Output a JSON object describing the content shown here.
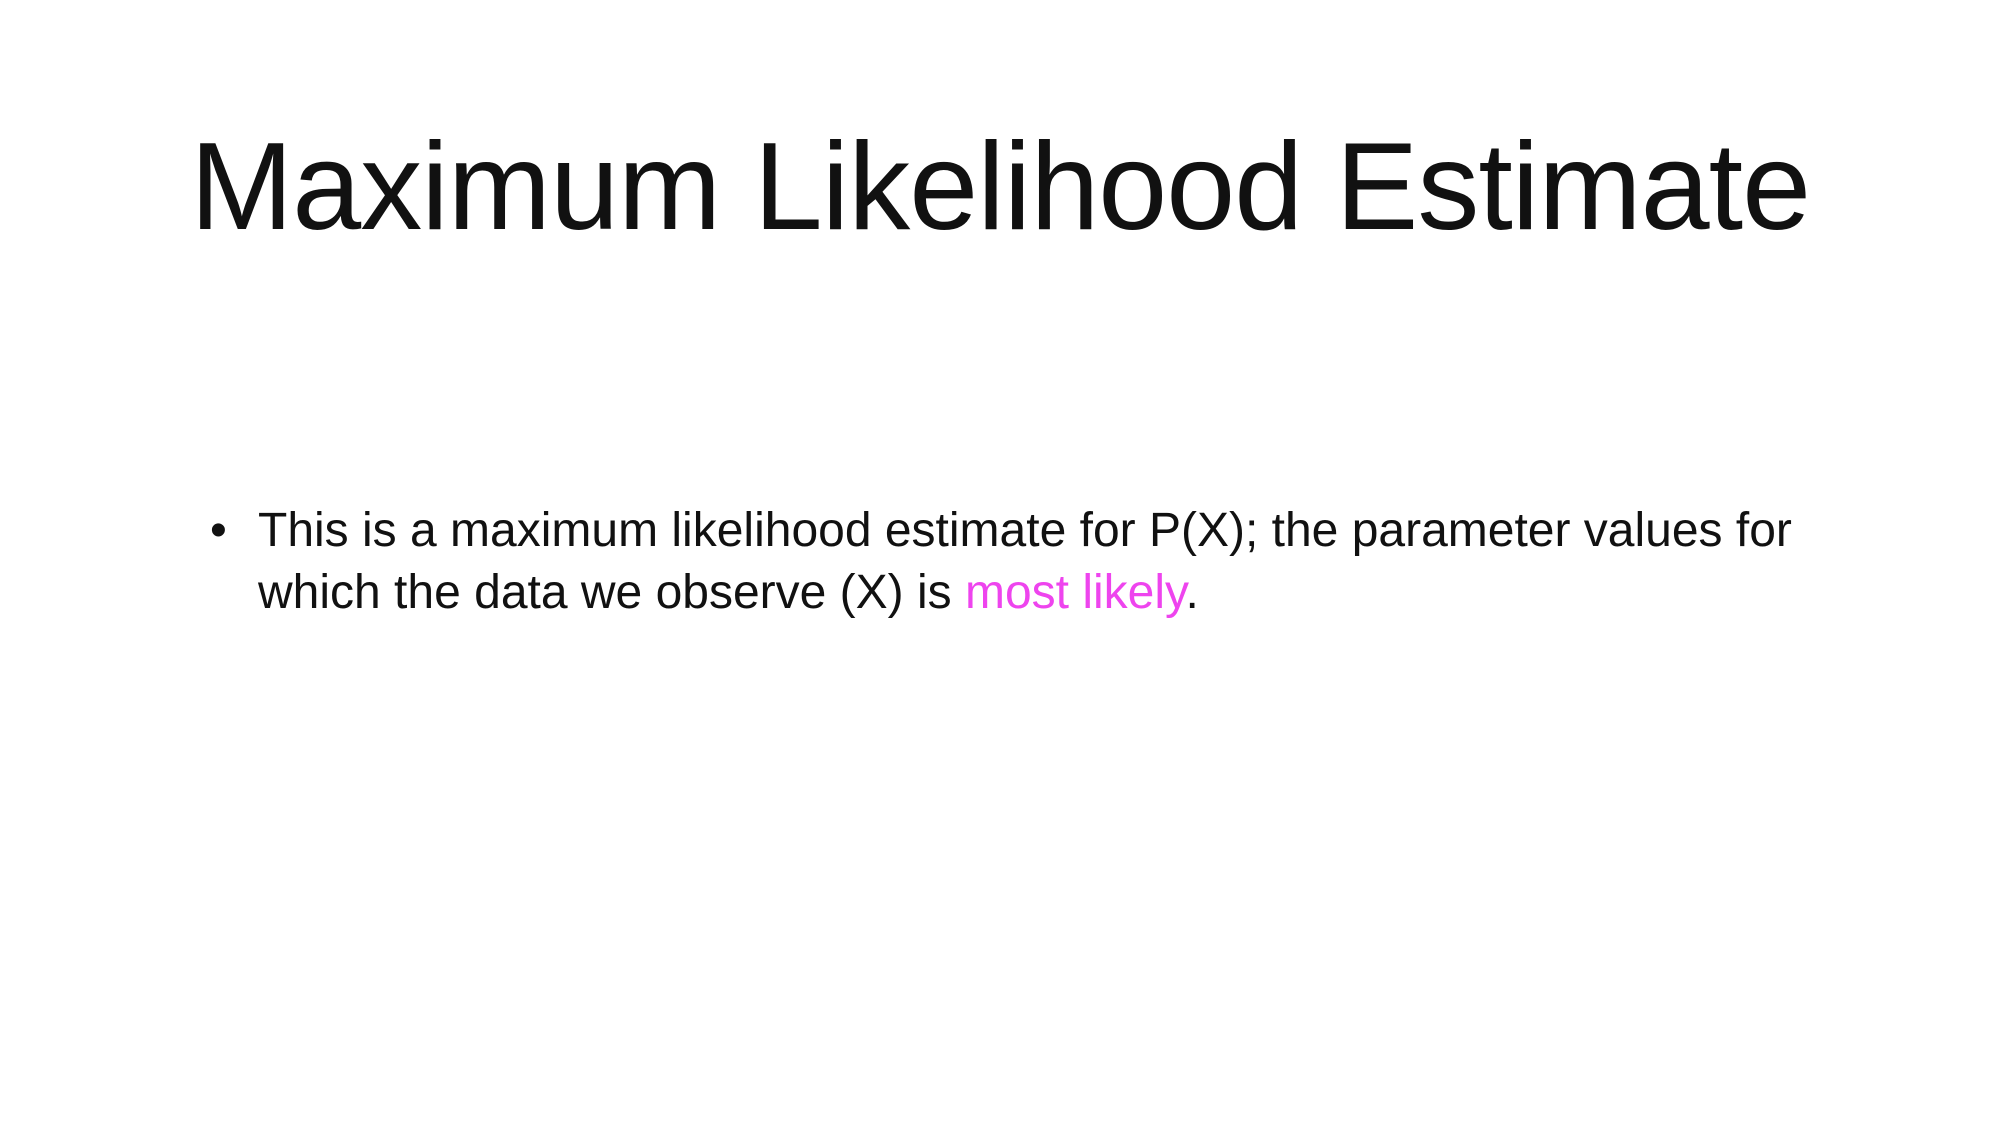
{
  "slide": {
    "title": "Maximum Likelihood Estimate",
    "bullets": [
      {
        "marker": "•",
        "text_before": "This is a maximum likelihood estimate for P(X); the parameter values for which the data we observe (X) is ",
        "highlight": "most likely",
        "text_after": "."
      }
    ]
  },
  "colors": {
    "text": "#111111",
    "highlight": "#ee44ee",
    "background": "#ffffff"
  }
}
